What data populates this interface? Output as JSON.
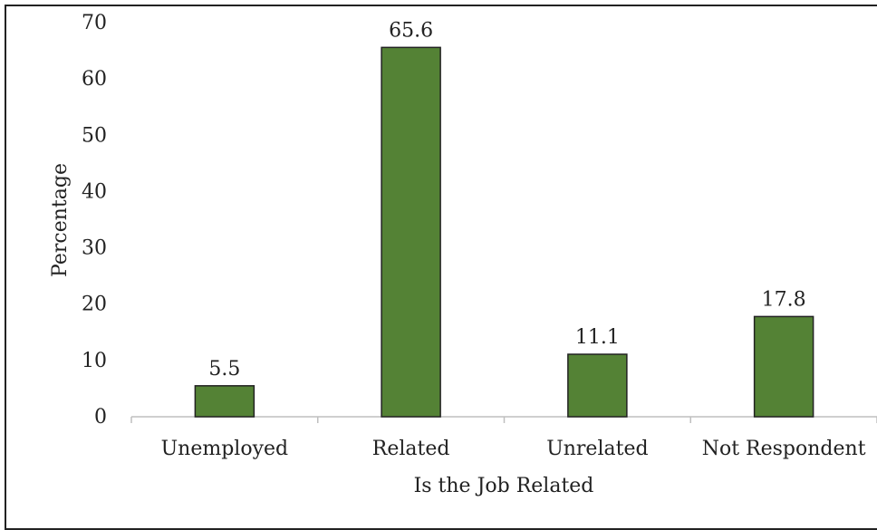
{
  "chart_data": {
    "type": "bar",
    "categories": [
      "Unemployed",
      "Related",
      "Unrelated",
      "Not Respondent"
    ],
    "values": [
      5.5,
      65.6,
      11.1,
      17.8
    ],
    "value_labels": [
      "5.5",
      "65.6",
      "11.1",
      "17.8"
    ],
    "title": "",
    "xlabel": "Is the Job Related",
    "ylabel": "Percentage",
    "ylim": [
      0,
      70
    ],
    "yticks": [
      0,
      10,
      20,
      30,
      40,
      50,
      60,
      70
    ],
    "grid": false,
    "legend": "none",
    "bar_color": "#548235",
    "bar_edge_color": "#222222"
  }
}
